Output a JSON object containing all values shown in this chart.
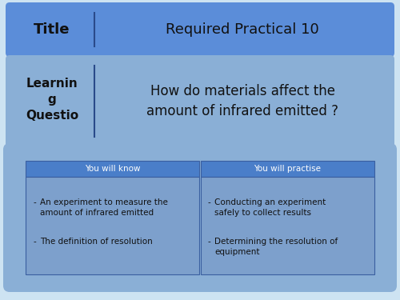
{
  "bg_color": "#cde3f2",
  "title_bar_color": "#5b8dd9",
  "title_label": "Title",
  "title_text": "Required Practical 10",
  "lq_bar_color": "#8aafd6",
  "lq_label": "Learnin\ng\nQuestio",
  "lq_text": "How do materials affect the\namount of infrared emitted ?",
  "lo_bg_color": "#8aafd6",
  "lo_inner_bg": "#7da0cc",
  "lo_table_header_color": "#4a7ec9",
  "lo_header1": "You will know",
  "lo_header2": "You will practise",
  "lo_items_left_line1": "An experiment to measure the",
  "lo_items_left_line2": "amount of infrared emitted",
  "lo_items_left_b": "The definition of resolution",
  "lo_items_right_line1": "Conducting an experiment",
  "lo_items_right_line2": "safely to collect results",
  "lo_items_right_b_line1": "Determining the resolution of",
  "lo_items_right_b_line2": "equipment",
  "header_text_color": "#ffffff",
  "body_text_color": "#111111",
  "title_label_color": "#111111",
  "divider_color": "#2a4a8a"
}
